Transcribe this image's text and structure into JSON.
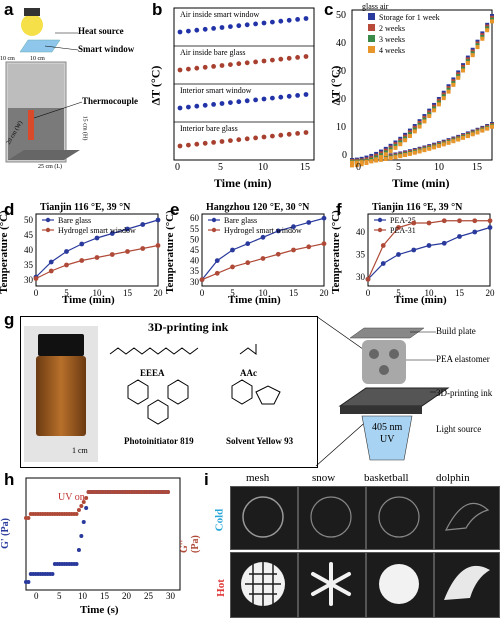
{
  "panels": {
    "a": {
      "label": "a",
      "heat_source": "Heat source",
      "smart_window": "Smart window",
      "thermocouple": "Thermocouple",
      "dim_top1": "10 cm",
      "dim_top2": "10 cm",
      "dim_w": "20 cm (W)",
      "dim_l": "25 cm (L)",
      "dim_h": "15 cm (H)"
    },
    "b": {
      "label": "b",
      "ylabel": "ΔT (°C)",
      "xlabel": "Time (min)",
      "ticks_x": [
        "0",
        "5",
        "10",
        "15"
      ],
      "rows": [
        {
          "name": "Air inside smart window",
          "color": "#2233a8"
        },
        {
          "name": "Air inside bare glass",
          "color": "#a84030"
        },
        {
          "name": "Interior smart window",
          "color": "#2233a8"
        },
        {
          "name": "Interior bare glass",
          "color": "#a84030"
        }
      ]
    },
    "c": {
      "label": "c",
      "top_note": "glass air",
      "ylabel": "ΔT (°C)",
      "xlabel": "Time (min)",
      "ticks_x": [
        "0",
        "5",
        "10",
        "15"
      ],
      "ticks_y": [
        "0",
        "10",
        "20",
        "30",
        "40",
        "50"
      ],
      "legend": [
        "Storage for 1 week",
        "2 weeks",
        "3 weeks",
        "4 weeks"
      ],
      "colors": [
        "#2a3a9c",
        "#b84a3a",
        "#3a8a4a",
        "#e8952a"
      ]
    },
    "d": {
      "label": "d",
      "title": "Tianjin  116 °E, 39 °N",
      "ylabel": "Temperature (°C)",
      "xlabel": "Time (min)",
      "legend": [
        "Bare glass",
        "Hydrogel smart window"
      ],
      "ticks_x": [
        "0",
        "5",
        "10",
        "15",
        "20"
      ],
      "ticks_y": [
        "30",
        "35",
        "40",
        "45",
        "50"
      ]
    },
    "e": {
      "label": "e",
      "title": "Hangzhou  120 °E, 30 °N",
      "ylabel": "Temperature (°C)",
      "xlabel": "Time (min)",
      "legend": [
        "Bare glass",
        "Hydrogel smart window"
      ],
      "ticks_x": [
        "0",
        "5",
        "10",
        "15",
        "20"
      ],
      "ticks_y": [
        "30",
        "35",
        "40",
        "45",
        "50",
        "55",
        "60"
      ]
    },
    "f": {
      "label": "f",
      "title": "Tianjin  116 °E, 39 °N",
      "ylabel": "Temperature (°C)",
      "xlabel": "Time (min)",
      "legend": [
        "PEA-25",
        "PEA-31"
      ],
      "ticks_x": [
        "0",
        "5",
        "10",
        "15",
        "20"
      ],
      "ticks_y": [
        "30",
        "35",
        "40"
      ]
    },
    "g": {
      "label": "g",
      "title": "3D-printing ink",
      "chems": [
        "EEEA",
        "AAc",
        "Photoinitiator 819",
        "Solvent Yellow 93"
      ],
      "scale": "1 cm",
      "build_plate": "Build plate",
      "elastomer": "PEA elastomer",
      "ink": "3D-printing ink",
      "uv1": "405 nm",
      "uv2": "UV",
      "light": "Light source"
    },
    "h": {
      "label": "h",
      "ylabel_left": "G' (Pa)",
      "ylabel_right": "G'' (Pa)",
      "xlabel": "Time (s)",
      "uv_on": "UV on",
      "ticks_x": [
        "0",
        "5",
        "10",
        "15",
        "20",
        "25",
        "30"
      ]
    },
    "i": {
      "label": "i",
      "cols": [
        "mesh",
        "snow",
        "basketball",
        "dolphin"
      ],
      "cold": "Cold",
      "hot": "Hot"
    }
  },
  "colors": {
    "blue": "#2a3a9c",
    "red": "#b04a38",
    "cyan": "#2aa6d8",
    "hot": "#e03a3a"
  },
  "chart_data": [
    {
      "type": "line",
      "panel": "d",
      "x": [
        0,
        2.5,
        5,
        7.5,
        10,
        12.5,
        15,
        17.5,
        20
      ],
      "series": [
        {
          "name": "Bare glass",
          "values": [
            31,
            36,
            39.5,
            42,
            44,
            45.5,
            47,
            48.5,
            50
          ]
        },
        {
          "name": "Hydrogel smart window",
          "values": [
            30.5,
            33,
            35,
            36.5,
            37.5,
            38.5,
            39.5,
            40.5,
            41.5
          ]
        }
      ],
      "ylim": [
        28,
        52
      ]
    },
    {
      "type": "line",
      "panel": "e",
      "x": [
        0,
        2.5,
        5,
        7.5,
        10,
        12.5,
        15,
        17.5,
        20
      ],
      "series": [
        {
          "name": "Bare glass",
          "values": [
            31,
            40,
            45,
            48,
            51,
            54,
            56,
            58,
            60
          ]
        },
        {
          "name": "Hydrogel smart window",
          "values": [
            31,
            34,
            37,
            39,
            41,
            43,
            45,
            46.5,
            48
          ]
        }
      ],
      "ylim": [
        28,
        62
      ]
    },
    {
      "type": "line",
      "panel": "f",
      "x": [
        0,
        2.5,
        5,
        7.5,
        10,
        12.5,
        15,
        17.5,
        20
      ],
      "series": [
        {
          "name": "PEA-25",
          "values": [
            29.5,
            33,
            35,
            36,
            37,
            37.5,
            39,
            40,
            41
          ]
        },
        {
          "name": "PEA-31",
          "values": [
            29.5,
            37,
            41,
            42,
            42,
            42.5,
            42.5,
            42.5,
            42.5
          ]
        }
      ],
      "ylim": [
        28,
        44
      ]
    }
  ]
}
